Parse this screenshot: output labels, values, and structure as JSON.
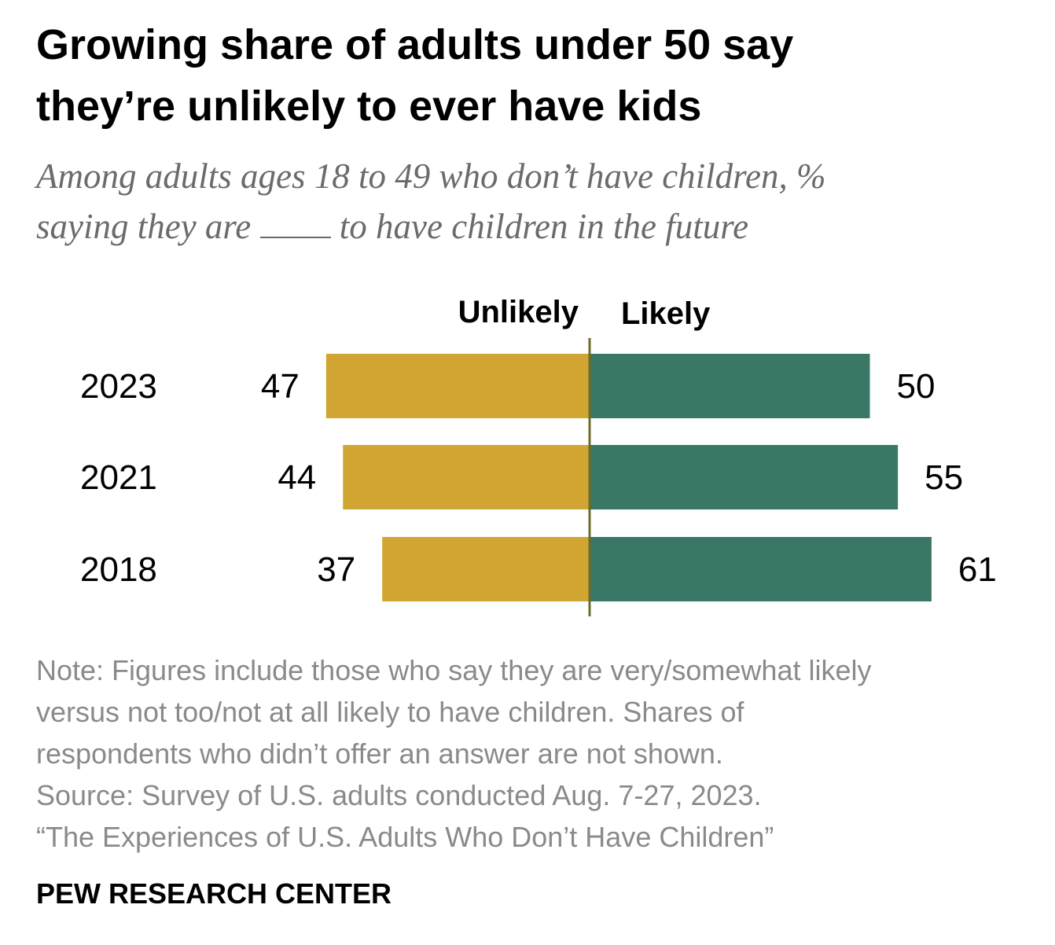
{
  "title_lines": [
    "Growing share of adults under 50 say",
    "they’re unlikely to ever have kids"
  ],
  "subtitle": {
    "line1": "Among adults ages 18 to 49 who don’t have children, %",
    "line2_start": "saying they are",
    "line2_end": "to have children in the future"
  },
  "chart_data": {
    "type": "bar",
    "orientation": "horizontal-diverging",
    "title": "Growing share of adults under 50 say they’re unlikely to ever have kids",
    "categories": [
      "2023",
      "2021",
      "2018"
    ],
    "series": [
      {
        "name": "Unlikely",
        "values": [
          47,
          44,
          37
        ],
        "color": "#D1A531"
      },
      {
        "name": "Likely",
        "values": [
          50,
          55,
          61
        ],
        "color": "#397766"
      }
    ],
    "xlabel": "",
    "ylabel": "",
    "xlim": [
      -65,
      65
    ],
    "center_line_color": "#6b6b2b"
  },
  "notes": [
    "Note: Figures include those who say they are very/somewhat likely",
    "versus not too/not at all likely to have children. Shares of",
    "respondents who didn’t offer an answer are not shown.",
    "Source: Survey of U.S. adults conducted Aug. 7-27, 2023.",
    "“The Experiences of U.S. Adults Who Don’t Have Children”"
  ],
  "brand": "PEW RESEARCH CENTER"
}
